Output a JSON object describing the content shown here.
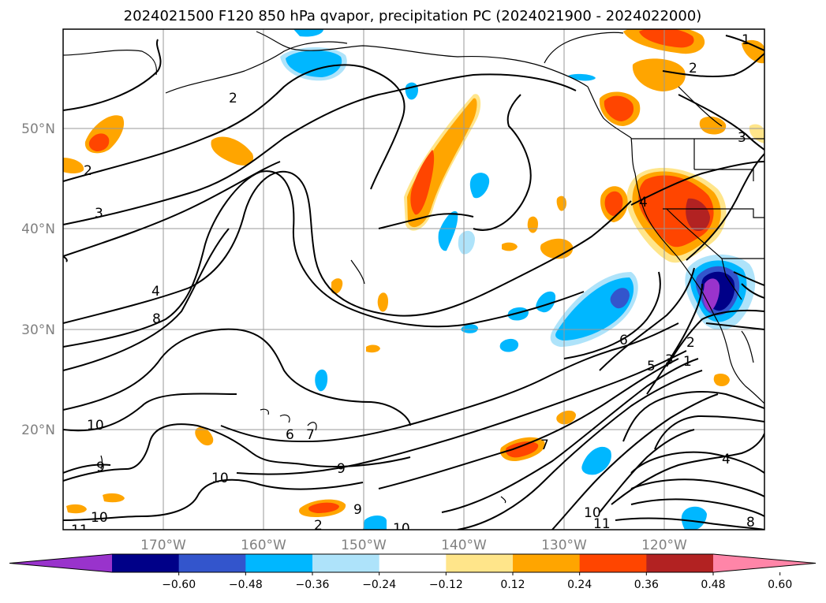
{
  "title": "2024021500 F120 850 hPa qvapor, precipitation PC (2024021900 - 2024022000)",
  "lon_labels": [
    "170°W",
    "160°W",
    "150°W",
    "140°W",
    "130°W",
    "120°W"
  ],
  "lat_labels": [
    "50°N",
    "40°N",
    "30°N",
    "20°N"
  ],
  "contour_labels": [
    "2",
    "2",
    "1",
    "2",
    "3",
    "3",
    "4",
    "4",
    "8",
    "10",
    "6",
    "7",
    "9",
    "10",
    "9",
    "9",
    "10",
    "11",
    "10",
    "6",
    "7",
    "5",
    "3",
    "2",
    "1",
    "4",
    "10",
    "11",
    "8",
    "2"
  ],
  "colorbar": {
    "ticks": [
      "−0.60",
      "−0.48",
      "−0.36",
      "−0.24",
      "−0.12",
      "0.12",
      "0.24",
      "0.36",
      "0.48",
      "0.60"
    ],
    "colors": [
      "#9933cc",
      "#000088",
      "#3355cc",
      "#00b7ff",
      "#aee3fa",
      "#ffffff",
      "#ffe58a",
      "#ffa500",
      "#ff4500",
      "#b22222",
      "#ff85a8"
    ]
  },
  "map_data": {
    "projection": "equirectangular",
    "lon_range": [
      -180,
      -110
    ],
    "lat_range": [
      10,
      60
    ],
    "variable": "850 hPa qvapor (contours), precipitation PC (shaded)",
    "grid": true
  }
}
